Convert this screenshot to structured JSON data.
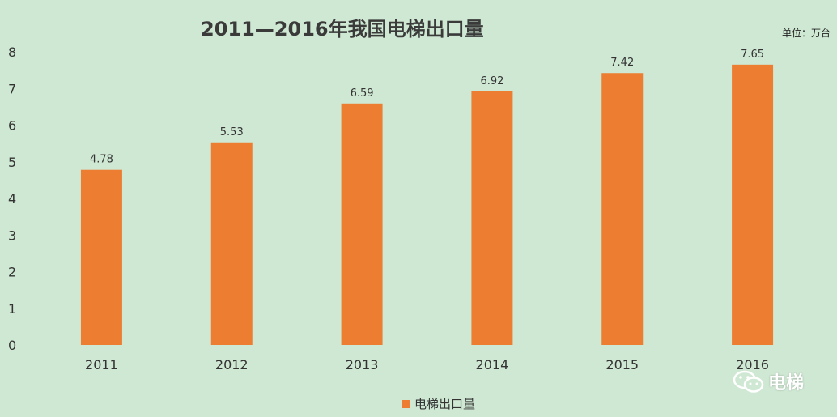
{
  "chart_data": {
    "type": "bar",
    "title": "2011—2016年我国电梯出口量",
    "unit_label": "单位：万台",
    "categories": [
      "2011",
      "2012",
      "2013",
      "2014",
      "2015",
      "2016"
    ],
    "values": [
      4.78,
      5.53,
      6.59,
      6.92,
      7.42,
      7.65
    ],
    "value_labels": [
      "4.78",
      "5.53",
      "6.59",
      "6.92",
      "7.42",
      "7.65"
    ],
    "series_name": "电梯出口量",
    "ylim": [
      0,
      8
    ],
    "yticks": [
      "0",
      "1",
      "2",
      "3",
      "4",
      "5",
      "6",
      "7",
      "8"
    ],
    "grid": false,
    "legend_position": "bottom",
    "bar_color": "#ed7d31",
    "background_color": "#cfe8d3"
  },
  "watermark": {
    "text": "电梯",
    "icon": "wechat-icon"
  }
}
